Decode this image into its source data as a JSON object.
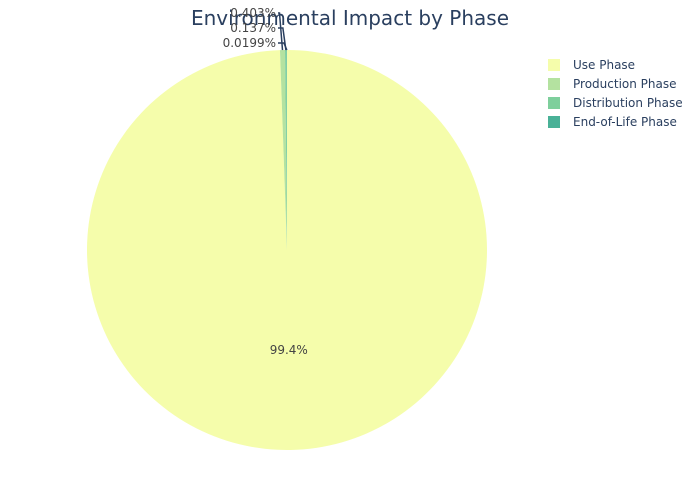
{
  "chart_data": {
    "type": "pie",
    "title": "Environmental Impact by Phase",
    "legend_position": "top-right",
    "slices": [
      {
        "name": "Use Phase",
        "percent_label": "99.4%",
        "percent": 99.4401,
        "color": "#f5fdab"
      },
      {
        "name": "Production Phase",
        "percent_label": "0.403%",
        "percent": 0.403,
        "color": "#b4e2a0"
      },
      {
        "name": "Distribution Phase",
        "percent_label": "0.137%",
        "percent": 0.137,
        "color": "#7ecf9c"
      },
      {
        "name": "End-of-Life Phase",
        "percent_label": "0.0199%",
        "percent": 0.0199,
        "color": "#49b197"
      }
    ]
  }
}
